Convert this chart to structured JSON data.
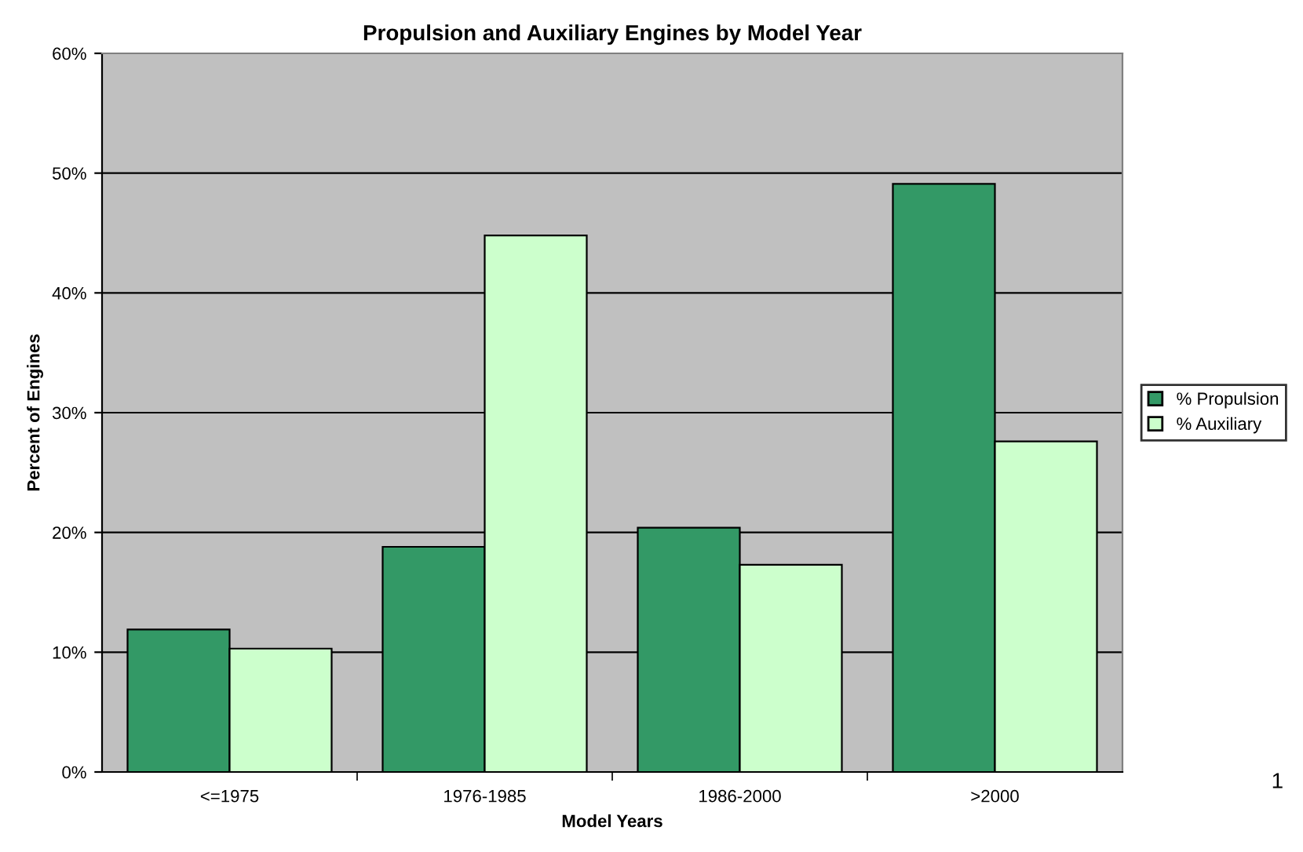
{
  "chart_data": {
    "type": "bar",
    "title": "Propulsion and Auxiliary Engines by Model Year",
    "xlabel": "Model Years",
    "ylabel": "Percent of Engines",
    "categories": [
      "<=1975",
      "1976-1985",
      "1986-2000",
      ">2000"
    ],
    "series": [
      {
        "name": "% Propulsion",
        "color": "#339966",
        "values": [
          11.9,
          18.8,
          20.4,
          49.1
        ]
      },
      {
        "name": "% Auxiliary",
        "color": "#ccffcc",
        "values": [
          10.3,
          44.8,
          17.3,
          27.6
        ]
      }
    ],
    "ylim": [
      0,
      60
    ],
    "yticks": [
      {
        "value": 0,
        "label": "0%"
      },
      {
        "value": 10,
        "label": "10%"
      },
      {
        "value": 20,
        "label": "20%"
      },
      {
        "value": 30,
        "label": "30%"
      },
      {
        "value": 40,
        "label": "40%"
      },
      {
        "value": 50,
        "label": "50%"
      },
      {
        "value": 60,
        "label": "60%"
      }
    ],
    "grid": "y",
    "legend": "right",
    "annotations": [
      "1"
    ]
  }
}
